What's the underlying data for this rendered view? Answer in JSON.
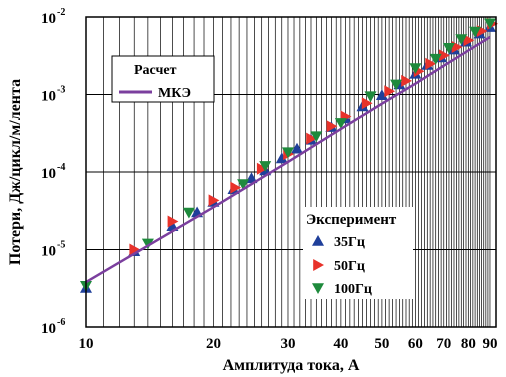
{
  "chart_data": {
    "type": "scatter",
    "xlabel": "Амплитуда тока, А",
    "ylabel": "Потери, Дж/цикл/м/лента",
    "xscale": "log",
    "yscale": "log",
    "xlim": [
      10,
      93
    ],
    "ylim": [
      1e-06,
      0.01
    ],
    "grid": true,
    "x_ticks": [
      {
        "value": 10,
        "label": "10"
      },
      {
        "value": 20,
        "label": "20"
      },
      {
        "value": 30,
        "label": "30"
      },
      {
        "value": 40,
        "label": "40"
      },
      {
        "value": 50,
        "label": "50"
      },
      {
        "value": 60,
        "label": "60"
      },
      {
        "value": 70,
        "label": "70"
      },
      {
        "value": 80,
        "label": "80"
      },
      {
        "value": 90,
        "label": "90"
      }
    ],
    "y_ticks": [
      {
        "value": 1e-06,
        "base": "10",
        "exp": "-6"
      },
      {
        "value": 1e-05,
        "base": "10",
        "exp": "-5"
      },
      {
        "value": 0.0001,
        "base": "10",
        "exp": "-4"
      },
      {
        "value": 0.001,
        "base": "10",
        "exp": "-3"
      },
      {
        "value": 0.01,
        "base": "10",
        "exp": "-2"
      }
    ],
    "legend_calc": {
      "title": "Расчет",
      "placement": "top-left",
      "entries": [
        {
          "name": "МКЭ",
          "color": "#7b3f9e"
        }
      ]
    },
    "legend_exp": {
      "title": "Эксперимент",
      "placement": "right",
      "entries": [
        {
          "name": "35Гц",
          "color": "#1f3f9a",
          "marker": "triangle-up"
        },
        {
          "name": "50Гц",
          "color": "#e8322a",
          "marker": "triangle-right"
        },
        {
          "name": "100Гц",
          "color": "#1e8a3c",
          "marker": "triangle-down"
        }
      ]
    },
    "series": [
      {
        "name": "МКЭ",
        "kind": "line",
        "color": "#7b3f9e",
        "x": [
          10,
          15,
          20,
          30,
          40,
          50,
          60,
          70,
          80,
          90
        ],
        "y": [
          3.8e-06,
          1.4e-05,
          3.5e-05,
          0.000135,
          0.00036,
          0.00076,
          0.00138,
          0.00235,
          0.0037,
          0.0055
        ]
      },
      {
        "name": "35Гц",
        "kind": "scatter",
        "marker": "triangle-up",
        "color": "#1f3f9a",
        "x": [
          10,
          13,
          16,
          18.3,
          20,
          22.3,
          24.6,
          26.5,
          29,
          31.5,
          34,
          38,
          41,
          45,
          50,
          55,
          60,
          64,
          69,
          74,
          79,
          85,
          90
        ],
        "y": [
          3.2e-06,
          9.5e-06,
          2e-05,
          3e-05,
          4.1e-05,
          6e-05,
          8.3e-05,
          0.000105,
          0.00015,
          0.0002,
          0.00026,
          0.00038,
          0.00049,
          0.0007,
          0.00098,
          0.00135,
          0.00185,
          0.0024,
          0.003,
          0.0038,
          0.0048,
          0.0061,
          0.0074
        ]
      },
      {
        "name": "50Гц",
        "kind": "scatter",
        "marker": "triangle-right",
        "color": "#e8322a",
        "x": [
          13,
          16,
          20,
          22.5,
          26,
          30,
          34,
          38,
          41,
          46,
          52,
          57,
          61,
          65,
          70,
          75,
          80,
          86,
          91
        ],
        "y": [
          1e-05,
          2.3e-05,
          4.3e-05,
          6.3e-05,
          0.00011,
          0.00017,
          0.00027,
          0.00039,
          0.00052,
          0.00077,
          0.0011,
          0.0015,
          0.002,
          0.0025,
          0.0032,
          0.0041,
          0.005,
          0.0066,
          0.0082
        ]
      },
      {
        "name": "100Гц",
        "kind": "scatter",
        "marker": "triangle-down",
        "color": "#1e8a3c",
        "x": [
          10,
          14,
          17.5,
          23.5,
          26.5,
          30,
          35,
          40,
          47,
          54,
          60,
          67,
          72,
          77,
          83,
          90
        ],
        "y": [
          3.4e-06,
          1.2e-05,
          3e-05,
          7e-05,
          0.00012,
          0.00018,
          0.00029,
          0.00043,
          0.00095,
          0.00135,
          0.0022,
          0.0029,
          0.004,
          0.0052,
          0.0065,
          0.0083
        ]
      }
    ]
  }
}
